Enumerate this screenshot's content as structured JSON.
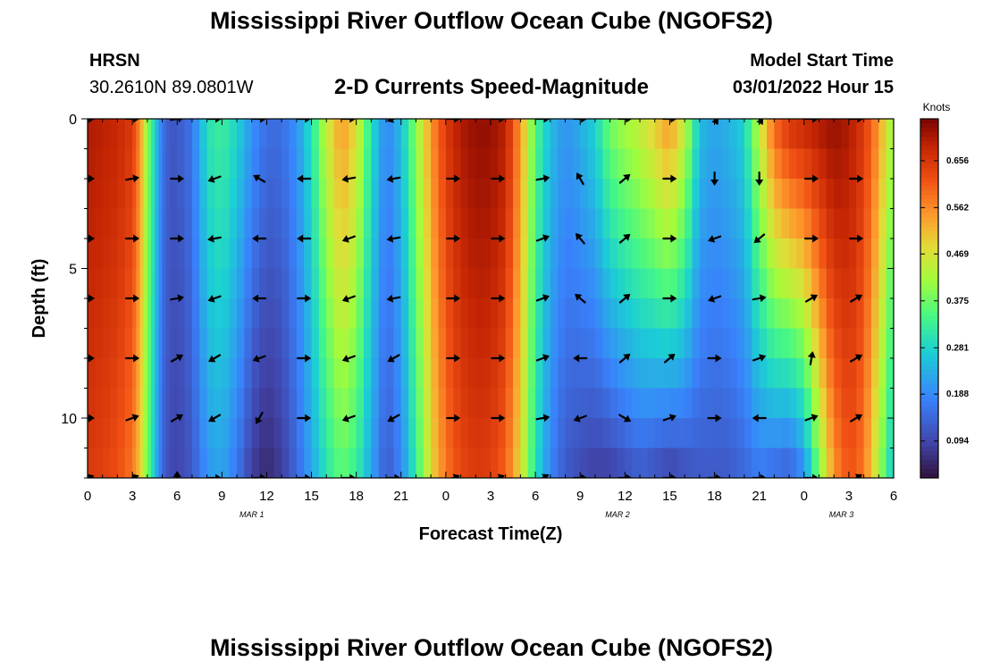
{
  "header": {
    "title": "Mississippi River Outflow Ocean Cube (NGOFS2)",
    "station_id": "HRSN",
    "station_coords": "30.2610N  89.0801W",
    "subtitle": "2-D Currents Speed-Magnitude",
    "model_label": "Model Start Time",
    "model_time": "03/01/2022 Hour 15",
    "bottom_title": "Mississippi River Outflow Ocean Cube (NGOFS2)"
  },
  "chart_data": {
    "type": "heatmap",
    "title": "2-D Currents Speed-Magnitude",
    "xlabel": "Forecast Time(Z)",
    "ylabel": "Depth (ft)",
    "x_tick_labels": [
      "0",
      "3",
      "6",
      "9",
      "12",
      "15",
      "18",
      "21",
      "0",
      "3",
      "6",
      "9",
      "12",
      "15",
      "18",
      "21",
      "0",
      "3",
      "6"
    ],
    "x_tick_hours": [
      0,
      3,
      6,
      9,
      12,
      15,
      18,
      21,
      24,
      27,
      30,
      33,
      36,
      39,
      42,
      45,
      48,
      51,
      54
    ],
    "date_labels": [
      {
        "label": "MAR 1",
        "hour": 11
      },
      {
        "label": "MAR 2",
        "hour": 35.5
      },
      {
        "label": "MAR 3",
        "hour": 50.5
      }
    ],
    "xlim": [
      0,
      54
    ],
    "y_tick_labels": [
      "0",
      "5",
      "10"
    ],
    "y_tick_values": [
      0,
      5,
      10
    ],
    "ylim": [
      0,
      12
    ],
    "colorbar": {
      "label": "Knots",
      "tick_labels": [
        "0.094",
        "0.188",
        "0.281",
        "0.375",
        "0.469",
        "0.562",
        "0.656"
      ],
      "tick_values": [
        0.094,
        0.188,
        0.281,
        0.375,
        0.469,
        0.562,
        0.656
      ],
      "range": [
        0.02,
        0.74
      ]
    },
    "speed_profile_hours": [
      0,
      1,
      2,
      3,
      3.5,
      4,
      4.5,
      5,
      5.5,
      6,
      7,
      8,
      9,
      10,
      11,
      12,
      13,
      14,
      15,
      16,
      17,
      18,
      19,
      20,
      21,
      22,
      23,
      24,
      25,
      26,
      27,
      28,
      29,
      30,
      31,
      32,
      33,
      34,
      35,
      36,
      37,
      38,
      39,
      40,
      41,
      42,
      43,
      44,
      45,
      46,
      47,
      48,
      49,
      50,
      51,
      52,
      53,
      54
    ],
    "surface_speed_knots": [
      0.7,
      0.69,
      0.68,
      0.65,
      0.56,
      0.4,
      0.28,
      0.16,
      0.12,
      0.12,
      0.16,
      0.3,
      0.33,
      0.28,
      0.2,
      0.15,
      0.15,
      0.2,
      0.3,
      0.45,
      0.55,
      0.48,
      0.3,
      0.18,
      0.25,
      0.4,
      0.55,
      0.65,
      0.7,
      0.72,
      0.72,
      0.69,
      0.55,
      0.35,
      0.25,
      0.2,
      0.23,
      0.28,
      0.38,
      0.42,
      0.45,
      0.5,
      0.55,
      0.45,
      0.25,
      0.22,
      0.24,
      0.28,
      0.45,
      0.6,
      0.66,
      0.68,
      0.7,
      0.72,
      0.7,
      0.65,
      0.55,
      0.4
    ],
    "bottom_speed_knots": [
      0.65,
      0.64,
      0.62,
      0.58,
      0.5,
      0.38,
      0.26,
      0.14,
      0.1,
      0.09,
      0.12,
      0.2,
      0.22,
      0.16,
      0.08,
      0.05,
      0.08,
      0.14,
      0.22,
      0.3,
      0.36,
      0.32,
      0.22,
      0.12,
      0.18,
      0.32,
      0.48,
      0.58,
      0.63,
      0.65,
      0.64,
      0.6,
      0.48,
      0.3,
      0.18,
      0.12,
      0.1,
      0.08,
      0.08,
      0.1,
      0.12,
      0.1,
      0.08,
      0.1,
      0.12,
      0.12,
      0.12,
      0.14,
      0.16,
      0.14,
      0.12,
      0.18,
      0.38,
      0.55,
      0.62,
      0.58,
      0.42,
      0.25
    ],
    "arrow_depths_ft": [
      0,
      2,
      4,
      6,
      8,
      10,
      12
    ],
    "arrow_hours": [
      0,
      3,
      6,
      8.5,
      11.5,
      14.5,
      17.5,
      20.5,
      24.5,
      27.5,
      30.5,
      33,
      36,
      39,
      42,
      45,
      48.5,
      51.5
    ],
    "arrow_dir_deg": [
      [
        0,
        0,
        10,
        0,
        0,
        0,
        0,
        200,
        0,
        0,
        0,
        0,
        0,
        0,
        300,
        300,
        0,
        0
      ],
      [
        0,
        10,
        0,
        200,
        150,
        180,
        190,
        190,
        0,
        0,
        10,
        120,
        40,
        0,
        270,
        270,
        0,
        0
      ],
      [
        0,
        0,
        0,
        190,
        180,
        180,
        200,
        190,
        0,
        0,
        20,
        130,
        40,
        0,
        200,
        220,
        0,
        0
      ],
      [
        0,
        0,
        10,
        200,
        180,
        0,
        200,
        190,
        0,
        0,
        20,
        140,
        40,
        0,
        200,
        10,
        30,
        30
      ],
      [
        0,
        0,
        30,
        210,
        200,
        0,
        200,
        210,
        0,
        0,
        20,
        180,
        40,
        40,
        0,
        20,
        80,
        30
      ],
      [
        0,
        20,
        30,
        210,
        240,
        0,
        200,
        210,
        0,
        0,
        10,
        200,
        330,
        20,
        0,
        180,
        20,
        30
      ],
      [
        20,
        20,
        90,
        0,
        0,
        0,
        0,
        0,
        20,
        20,
        30,
        0,
        0,
        0,
        0,
        0,
        0,
        30
      ]
    ]
  }
}
